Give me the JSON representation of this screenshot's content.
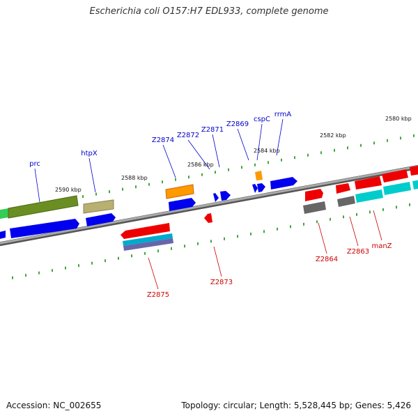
{
  "title": "Escherichia coli O157:H7 EDL933, complete genome",
  "footer": {
    "accession": "Accession: NC_002655",
    "stats": "Topology: circular; Length: 5,528,445 bp; Genes: 5,426"
  },
  "ruler_labels": [
    "2580 kbp",
    "2582 kbp",
    "2584 kbp",
    "2586 kbp",
    "2588 kbp",
    "2590 kbp"
  ],
  "genes": [
    {
      "name": "prc",
      "color": "#0000cc"
    },
    {
      "name": "htpX",
      "color": "#0000cc"
    },
    {
      "name": "Z2874",
      "color": "#0000cc"
    },
    {
      "name": "Z2872",
      "color": "#0000cc"
    },
    {
      "name": "Z2871",
      "color": "#0000cc"
    },
    {
      "name": "Z2869",
      "color": "#0000cc"
    },
    {
      "name": "cspC",
      "color": "#0000cc"
    },
    {
      "name": "rrmA",
      "color": "#0000cc"
    },
    {
      "name": "Z2875",
      "color": "#cc0000"
    },
    {
      "name": "Z2873",
      "color": "#cc0000"
    },
    {
      "name": "Z2864",
      "color": "#cc0000"
    },
    {
      "name": "Z2863",
      "color": "#cc0000"
    },
    {
      "name": "manZ",
      "color": "#cc0000"
    }
  ],
  "colors": {
    "forward_cds": "#0000ee",
    "reverse_cds": "#ee0000",
    "backbone": "#888888",
    "tick": "#008800"
  }
}
